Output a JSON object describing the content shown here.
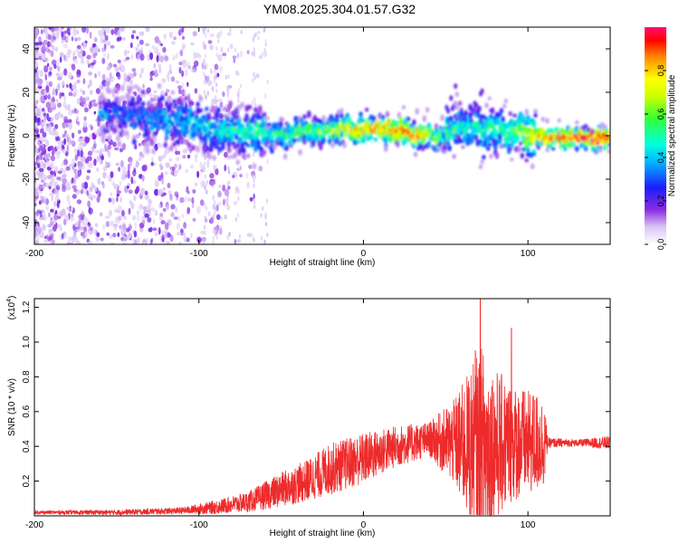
{
  "title": "YM08.2025.304.01.57.G32",
  "chart_data": [
    {
      "type": "heatmap",
      "xlabel": "Height of straight line (km)",
      "ylabel": "Frequency (Hz)",
      "xlim": [
        -200,
        150
      ],
      "ylim": [
        -50,
        50
      ],
      "xticks": [
        -200,
        -100,
        0,
        100
      ],
      "yticks": [
        -40,
        -20,
        0,
        20,
        40
      ],
      "colorbar": {
        "label": "Normalized spectral amplitude",
        "range": [
          0,
          1
        ],
        "ticks": [
          0.0,
          0.2,
          0.4,
          0.6,
          0.8
        ],
        "tick_labels": [
          "0.0",
          "0.2",
          "0.4",
          "0.6",
          "0.8"
        ]
      },
      "ridge": {
        "description_points_height_km": [
          -150,
          -130,
          -110,
          -90,
          -70,
          -50,
          -30,
          -10,
          10,
          30,
          50,
          60,
          70,
          90,
          110,
          130,
          150
        ],
        "center_frequency_hz": [
          10,
          8,
          6,
          3,
          2,
          0,
          2,
          3,
          3,
          1,
          0,
          4,
          3,
          2,
          -1,
          -1,
          -1
        ],
        "peak_amplitude": [
          0.3,
          0.35,
          0.4,
          0.45,
          0.5,
          0.55,
          0.6,
          0.8,
          0.9,
          0.95,
          0.55,
          0.45,
          0.5,
          0.55,
          0.9,
          1.0,
          1.0
        ]
      }
    },
    {
      "type": "line",
      "xlabel": "Height of straight line (km)",
      "ylabel": "SNR (10 * v/v)",
      "y_scale_label": "(x10",
      "y_scale_exp": "4",
      "y_scale_close": ")",
      "xlim": [
        -200,
        150
      ],
      "ylim": [
        0,
        1.25
      ],
      "xticks": [
        -200,
        -100,
        0,
        100
      ],
      "yticks": [
        0.2,
        0.4,
        0.6,
        0.8,
        1.0,
        1.2
      ],
      "color": "#ee2b2b",
      "envelope": {
        "x": [
          -200,
          -150,
          -110,
          -90,
          -70,
          -50,
          -35,
          -20,
          0,
          20,
          40,
          55,
          65,
          72,
          80,
          90,
          100,
          105,
          110,
          112,
          130,
          150
        ],
        "baseline": [
          0.02,
          0.02,
          0.03,
          0.05,
          0.08,
          0.15,
          0.2,
          0.27,
          0.33,
          0.4,
          0.44,
          0.42,
          0.4,
          0.38,
          0.4,
          0.42,
          0.42,
          0.42,
          0.42,
          0.42,
          0.42,
          0.42
        ],
        "spread": [
          0.01,
          0.015,
          0.02,
          0.04,
          0.06,
          0.1,
          0.12,
          0.15,
          0.15,
          0.12,
          0.1,
          0.25,
          0.45,
          0.6,
          0.45,
          0.35,
          0.3,
          0.3,
          0.25,
          0.03,
          0.02,
          0.04
        ],
        "spike_peaks": [
          {
            "x": 71,
            "y": 1.25
          },
          {
            "x": 90,
            "y": 1.08
          },
          {
            "x": 68,
            "y": 0.95
          }
        ]
      }
    }
  ]
}
